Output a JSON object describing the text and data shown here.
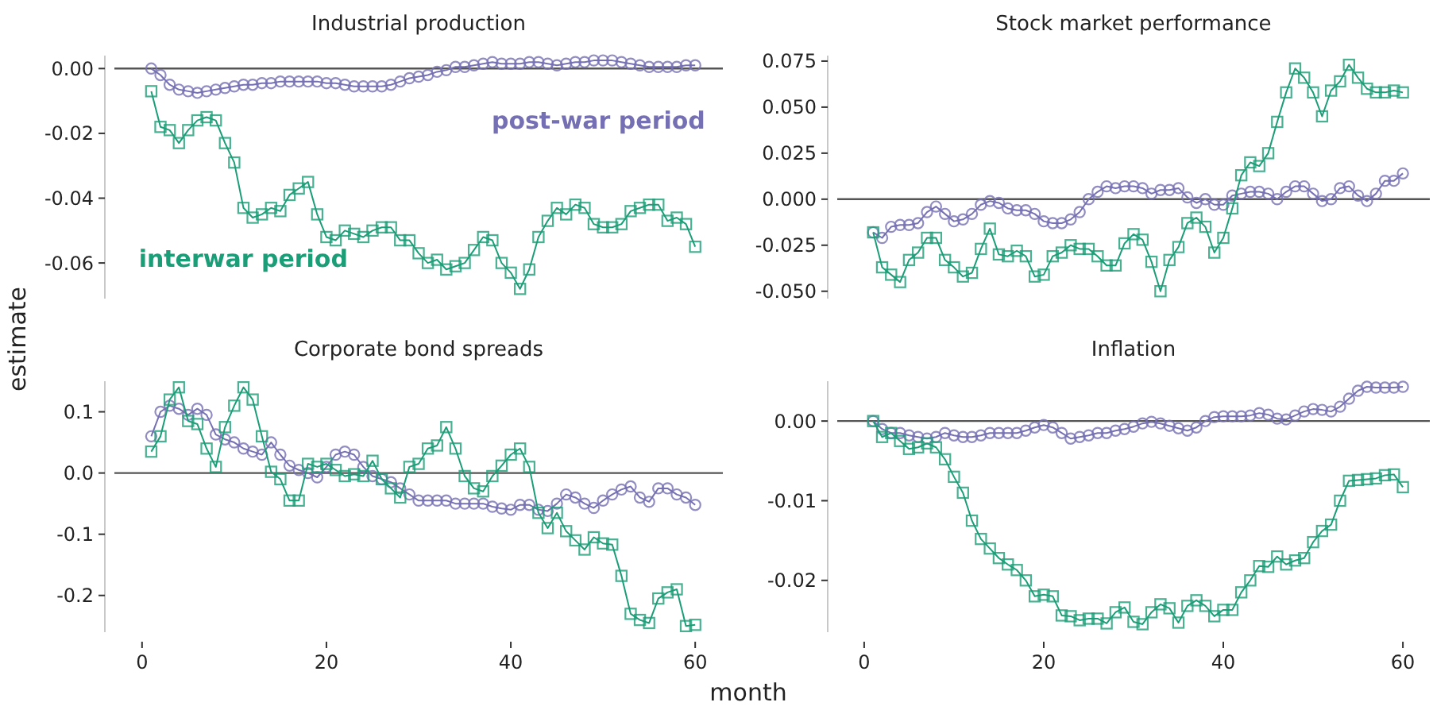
{
  "chart_data": [
    {
      "type": "line",
      "title": "Industrial production",
      "ylabel": "estimate",
      "xlim": [
        -3,
        63
      ],
      "ylim": [
        -0.071,
        0.004
      ],
      "xticks": [
        0,
        20,
        40,
        60
      ],
      "yticks": [
        {
          "value": -0.06,
          "label": "-0.06"
        },
        {
          "value": -0.04,
          "label": "-0.04"
        },
        {
          "value": -0.02,
          "label": "-0.02"
        },
        {
          "value": 0,
          "label": "0.00"
        }
      ],
      "tick_labels": "y",
      "ref_lines": [
        {
          "axis": "y",
          "value": 0,
          "color": "#555555"
        }
      ],
      "x": [
        1,
        2,
        3,
        4,
        5,
        6,
        7,
        8,
        9,
        10,
        11,
        12,
        13,
        14,
        15,
        16,
        17,
        18,
        19,
        20,
        21,
        22,
        23,
        24,
        25,
        26,
        27,
        28,
        29,
        30,
        31,
        32,
        33,
        34,
        35,
        36,
        37,
        38,
        39,
        40,
        41,
        42,
        43,
        44,
        45,
        46,
        47,
        48,
        49,
        50,
        51,
        52,
        53,
        54,
        55,
        56,
        57,
        58,
        59,
        60
      ],
      "series": [
        {
          "name": "post-war period",
          "color": "#7570b3",
          "marker": "circle",
          "values": [
            0,
            -0.002,
            -0.005,
            -0.0065,
            -0.007,
            -0.0075,
            -0.007,
            -0.0065,
            -0.006,
            -0.0055,
            -0.005,
            -0.005,
            -0.0045,
            -0.0045,
            -0.004,
            -0.004,
            -0.004,
            -0.004,
            -0.004,
            -0.0045,
            -0.0045,
            -0.005,
            -0.0055,
            -0.0055,
            -0.0055,
            -0.0055,
            -0.005,
            -0.004,
            -0.003,
            -0.0025,
            -0.002,
            -0.001,
            -0.0005,
            0.0005,
            0.0005,
            0.001,
            0.0015,
            0.002,
            0.0015,
            0.0015,
            0.0015,
            0.002,
            0.002,
            0.0015,
            0.001,
            0.0015,
            0.002,
            0.002,
            0.0025,
            0.0025,
            0.0025,
            0.002,
            0.0015,
            0.001,
            0.0005,
            0.0005,
            0.0005,
            0.0005,
            0.001,
            0.001
          ]
        },
        {
          "name": "interwar period",
          "color": "#1b9e77",
          "marker": "square",
          "values": [
            -0.007,
            -0.018,
            -0.019,
            -0.023,
            -0.019,
            -0.016,
            -0.015,
            -0.016,
            -0.023,
            -0.029,
            -0.043,
            -0.046,
            -0.045,
            -0.043,
            -0.044,
            -0.039,
            -0.037,
            -0.035,
            -0.045,
            -0.052,
            -0.053,
            -0.05,
            -0.051,
            -0.052,
            -0.05,
            -0.049,
            -0.049,
            -0.053,
            -0.053,
            -0.057,
            -0.06,
            -0.059,
            -0.062,
            -0.061,
            -0.06,
            -0.056,
            -0.052,
            -0.053,
            -0.06,
            -0.063,
            -0.068,
            -0.062,
            -0.052,
            -0.047,
            -0.043,
            -0.045,
            -0.042,
            -0.043,
            -0.048,
            -0.049,
            -0.049,
            -0.048,
            -0.044,
            -0.043,
            -0.042,
            -0.042,
            -0.047,
            -0.046,
            -0.048,
            -0.055
          ]
        }
      ]
    },
    {
      "type": "line",
      "title": "Stock market performance",
      "xlim": [
        -3,
        63
      ],
      "ylim": [
        -0.054,
        0.078
      ],
      "xticks": [
        0,
        20,
        40,
        60
      ],
      "yticks": [
        {
          "value": -0.05,
          "label": "-0.050"
        },
        {
          "value": -0.025,
          "label": "-0.025"
        },
        {
          "value": 0,
          "label": "0.000"
        },
        {
          "value": 0.025,
          "label": "0.025"
        },
        {
          "value": 0.05,
          "label": "0.050"
        },
        {
          "value": 0.075,
          "label": "0.075"
        }
      ],
      "tick_labels": "y",
      "ref_lines": [
        {
          "axis": "y",
          "value": 0,
          "color": "#555555"
        }
      ],
      "x": [
        1,
        2,
        3,
        4,
        5,
        6,
        7,
        8,
        9,
        10,
        11,
        12,
        13,
        14,
        15,
        16,
        17,
        18,
        19,
        20,
        21,
        22,
        23,
        24,
        25,
        26,
        27,
        28,
        29,
        30,
        31,
        32,
        33,
        34,
        35,
        36,
        37,
        38,
        39,
        40,
        41,
        42,
        43,
        44,
        45,
        46,
        47,
        48,
        49,
        50,
        51,
        52,
        53,
        54,
        55,
        56,
        57,
        58,
        59,
        60
      ],
      "series": [
        {
          "color": "#7570b3",
          "marker": "circle",
          "values": [
            -0.018,
            -0.021,
            -0.015,
            -0.014,
            -0.014,
            -0.013,
            -0.007,
            -0.004,
            -0.008,
            -0.012,
            -0.011,
            -0.008,
            -0.003,
            -0.001,
            -0.002,
            -0.005,
            -0.006,
            -0.006,
            -0.008,
            -0.012,
            -0.013,
            -0.013,
            -0.011,
            -0.007,
            0,
            0.004,
            0.007,
            0.006,
            0.007,
            0.007,
            0.006,
            0.003,
            0.005,
            0.005,
            0.006,
            0.001,
            -0.002,
            0,
            -0.003,
            -0.003,
            0.002,
            0.003,
            0.004,
            0.004,
            0.003,
            0,
            0.004,
            0.007,
            0.007,
            0.003,
            -0.001,
            0,
            0.006,
            0.007,
            0.002,
            -0.001,
            0.003,
            0.01,
            0.01,
            0.014
          ]
        },
        {
          "color": "#1b9e77",
          "marker": "square",
          "values": [
            -0.018,
            -0.037,
            -0.041,
            -0.045,
            -0.033,
            -0.029,
            -0.021,
            -0.021,
            -0.033,
            -0.037,
            -0.042,
            -0.04,
            -0.027,
            -0.016,
            -0.03,
            -0.031,
            -0.028,
            -0.031,
            -0.042,
            -0.041,
            -0.031,
            -0.029,
            -0.025,
            -0.027,
            -0.027,
            -0.031,
            -0.036,
            -0.036,
            -0.024,
            -0.019,
            -0.022,
            -0.034,
            -0.05,
            -0.033,
            -0.026,
            -0.013,
            -0.01,
            -0.015,
            -0.029,
            -0.021,
            -0.005,
            0.013,
            0.02,
            0.018,
            0.025,
            0.042,
            0.058,
            0.071,
            0.066,
            0.058,
            0.045,
            0.059,
            0.064,
            0.073,
            0.066,
            0.06,
            0.058,
            0.058,
            0.059,
            0.058
          ]
        }
      ]
    },
    {
      "type": "line",
      "title": "Corporate bond spreads",
      "xlabel": "month",
      "xlim": [
        -3,
        63
      ],
      "ylim": [
        -0.26,
        0.15
      ],
      "xticks": [
        0,
        20,
        40,
        60
      ],
      "yticks": [
        {
          "value": -0.2,
          "label": "-0.2"
        },
        {
          "value": -0.1,
          "label": "-0.1"
        },
        {
          "value": 0,
          "label": "0.0"
        },
        {
          "value": 0.1,
          "label": "0.1"
        }
      ],
      "ref_lines": [
        {
          "axis": "y",
          "value": 0,
          "color": "#555555"
        }
      ],
      "x": [
        1,
        2,
        3,
        4,
        5,
        6,
        7,
        8,
        9,
        10,
        11,
        12,
        13,
        14,
        15,
        16,
        17,
        18,
        19,
        20,
        21,
        22,
        23,
        24,
        25,
        26,
        27,
        28,
        29,
        30,
        31,
        32,
        33,
        34,
        35,
        36,
        37,
        38,
        39,
        40,
        41,
        42,
        43,
        44,
        45,
        46,
        47,
        48,
        49,
        50,
        51,
        52,
        53,
        54,
        55,
        56,
        57,
        58,
        59,
        60
      ],
      "series": [
        {
          "color": "#7570b3",
          "marker": "circle",
          "values": [
            0.06,
            0.1,
            0.11,
            0.105,
            0.095,
            0.105,
            0.095,
            0.063,
            0.055,
            0.05,
            0.04,
            0.035,
            0.03,
            0.05,
            0.03,
            0.012,
            0.005,
            0,
            -0.007,
            0.01,
            0.03,
            0.035,
            0.03,
            0.01,
            -0.005,
            -0.01,
            -0.015,
            -0.025,
            -0.035,
            -0.045,
            -0.045,
            -0.045,
            -0.045,
            -0.05,
            -0.05,
            -0.05,
            -0.05,
            -0.055,
            -0.058,
            -0.06,
            -0.052,
            -0.052,
            -0.06,
            -0.062,
            -0.05,
            -0.035,
            -0.04,
            -0.05,
            -0.057,
            -0.045,
            -0.035,
            -0.027,
            -0.022,
            -0.04,
            -0.047,
            -0.025,
            -0.025,
            -0.035,
            -0.04,
            -0.052
          ]
        },
        {
          "color": "#1b9e77",
          "marker": "square",
          "values": [
            0.035,
            0.06,
            0.12,
            0.14,
            0.085,
            0.08,
            0.04,
            0.01,
            0.075,
            0.11,
            0.14,
            0.12,
            0.06,
            0.002,
            -0.01,
            -0.045,
            -0.045,
            0.015,
            0.01,
            0.015,
            0.005,
            -0.005,
            -0.002,
            -0.005,
            0.02,
            -0.01,
            -0.025,
            -0.04,
            0.01,
            0.015,
            0.04,
            0.045,
            0.075,
            0.04,
            -0.005,
            -0.025,
            -0.03,
            -0.005,
            0.012,
            0.03,
            0.04,
            0.01,
            -0.065,
            -0.09,
            -0.065,
            -0.095,
            -0.11,
            -0.125,
            -0.105,
            -0.115,
            -0.117,
            -0.168,
            -0.23,
            -0.24,
            -0.245,
            -0.205,
            -0.195,
            -0.19,
            -0.25,
            -0.248
          ]
        }
      ]
    },
    {
      "type": "line",
      "title": "Inflation",
      "xlim": [
        -3,
        63
      ],
      "ylim": [
        -0.0265,
        0.005
      ],
      "xticks": [
        0,
        20,
        40,
        60
      ],
      "yticks": [
        {
          "value": -0.02,
          "label": "-0.02"
        },
        {
          "value": -0.01,
          "label": "-0.01"
        },
        {
          "value": 0,
          "label": "0.00"
        }
      ],
      "ref_lines": [
        {
          "axis": "y",
          "value": 0,
          "color": "#555555"
        }
      ],
      "x": [
        1,
        2,
        3,
        4,
        5,
        6,
        7,
        8,
        9,
        10,
        11,
        12,
        13,
        14,
        15,
        16,
        17,
        18,
        19,
        20,
        21,
        22,
        23,
        24,
        25,
        26,
        27,
        28,
        29,
        30,
        31,
        32,
        33,
        34,
        35,
        36,
        37,
        38,
        39,
        40,
        41,
        42,
        43,
        44,
        45,
        46,
        47,
        48,
        49,
        50,
        51,
        52,
        53,
        54,
        55,
        56,
        57,
        58,
        59,
        60
      ],
      "series": [
        {
          "color": "#7570b3",
          "marker": "circle",
          "values": [
            0,
            -0.001,
            -0.0015,
            -0.0015,
            -0.0018,
            -0.002,
            -0.0022,
            -0.002,
            -0.0015,
            -0.0018,
            -0.002,
            -0.002,
            -0.0018,
            -0.0015,
            -0.0015,
            -0.0015,
            -0.0015,
            -0.0012,
            -0.0008,
            -0.0005,
            -0.0008,
            -0.0015,
            -0.0022,
            -0.002,
            -0.0018,
            -0.0015,
            -0.0015,
            -0.0012,
            -0.001,
            -0.0007,
            -0.0003,
            -0.0001,
            -0.0003,
            -0.0006,
            -0.0009,
            -0.0012,
            -0.0008,
            0,
            0.0005,
            0.0006,
            0.0006,
            0.0006,
            0.0007,
            0.001,
            0.0008,
            0.0003,
            0.0002,
            0.0007,
            0.0012,
            0.0015,
            0.0014,
            0.0012,
            0.0018,
            0.0028,
            0.0038,
            0.0043,
            0.0042,
            0.0042,
            0.0042,
            0.0043
          ]
        },
        {
          "color": "#1b9e77",
          "marker": "square",
          "values": [
            0,
            -0.002,
            -0.0015,
            -0.0025,
            -0.0035,
            -0.0033,
            -0.0028,
            -0.0033,
            -0.0048,
            -0.007,
            -0.009,
            -0.0125,
            -0.0148,
            -0.016,
            -0.0172,
            -0.018,
            -0.0187,
            -0.02,
            -0.022,
            -0.0218,
            -0.022,
            -0.0244,
            -0.0245,
            -0.025,
            -0.0248,
            -0.0248,
            -0.0254,
            -0.024,
            -0.0234,
            -0.0252,
            -0.0255,
            -0.024,
            -0.023,
            -0.0235,
            -0.0253,
            -0.0232,
            -0.0225,
            -0.0232,
            -0.0245,
            -0.0237,
            -0.0237,
            -0.0215,
            -0.02,
            -0.0182,
            -0.0183,
            -0.017,
            -0.018,
            -0.0175,
            -0.0172,
            -0.0152,
            -0.0138,
            -0.013,
            -0.01,
            -0.0075,
            -0.0074,
            -0.0073,
            -0.0072,
            -0.0068,
            -0.0067,
            -0.0083
          ]
        }
      ]
    }
  ]
}
